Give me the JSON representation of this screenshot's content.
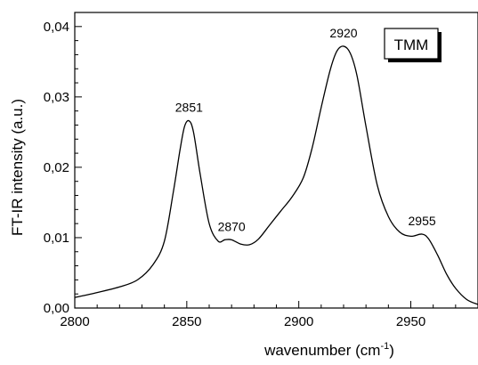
{
  "chart_data": {
    "type": "line",
    "title": "",
    "xlabel": "wavenumber (cm",
    "xlabel_sup": "-1",
    "xlabel_end": ")",
    "ylabel": "FT-IR intensity (a.u.)",
    "xlim": [
      2800,
      2980
    ],
    "ylim": [
      0,
      0.042
    ],
    "x_ticks": [
      2800,
      2850,
      2900,
      2950
    ],
    "x_tick_labels": [
      "2800",
      "2850",
      "2900",
      "2950"
    ],
    "x_minor_step": 10,
    "y_ticks": [
      0,
      0.01,
      0.02,
      0.03,
      0.04
    ],
    "y_tick_labels": [
      "0,00",
      "0,01",
      "0,02",
      "0,03",
      "0,04"
    ],
    "y_minor_step": 0.002,
    "grid": false,
    "legend": {
      "label": "TMM",
      "placement": "top-right"
    },
    "series": [
      {
        "color": "#000000",
        "x": [
          2800,
          2810,
          2820,
          2828,
          2835,
          2840,
          2844,
          2847,
          2849,
          2851,
          2853,
          2856,
          2860,
          2864,
          2867,
          2870,
          2874,
          2878,
          2882,
          2887,
          2892,
          2897,
          2902,
          2906,
          2910,
          2914,
          2917,
          2920,
          2923,
          2926,
          2930,
          2935,
          2940,
          2945,
          2950,
          2955,
          2958,
          2962,
          2966,
          2970,
          2975,
          2980
        ],
        "y": [
          0.0015,
          0.0022,
          0.003,
          0.004,
          0.0062,
          0.0095,
          0.0165,
          0.0225,
          0.0258,
          0.0266,
          0.025,
          0.019,
          0.012,
          0.0095,
          0.0097,
          0.0097,
          0.0091,
          0.009,
          0.0098,
          0.0118,
          0.0138,
          0.0158,
          0.0185,
          0.0228,
          0.0285,
          0.0338,
          0.0365,
          0.0372,
          0.0362,
          0.033,
          0.0258,
          0.0175,
          0.013,
          0.0108,
          0.0102,
          0.0105,
          0.0098,
          0.0075,
          0.0048,
          0.0028,
          0.0012,
          0.0005
        ]
      }
    ],
    "annotations": [
      {
        "text": "2851",
        "x": 2851,
        "y": 0.0266
      },
      {
        "text": "2870",
        "x": 2870,
        "y": 0.0097
      },
      {
        "text": "2920",
        "x": 2920,
        "y": 0.0372
      },
      {
        "text": "2955",
        "x": 2955,
        "y": 0.0105
      }
    ]
  }
}
